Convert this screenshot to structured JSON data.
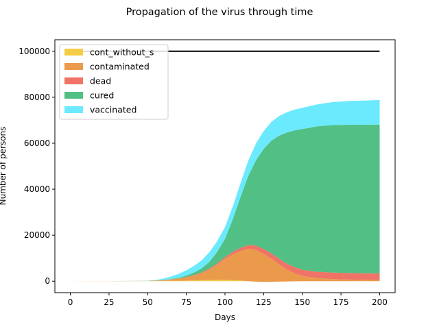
{
  "chart_data": {
    "type": "area",
    "title": "Propagation of the virus through time",
    "xlabel": "Days",
    "ylabel": "Number of persons",
    "xlim": [
      -10,
      210
    ],
    "ylim": [
      -5000,
      105000
    ],
    "xticks": [
      0,
      25,
      50,
      75,
      100,
      125,
      150,
      175,
      200
    ],
    "yticks": [
      0,
      20000,
      40000,
      60000,
      80000,
      100000
    ],
    "legend_position": "upper-left",
    "total_population": 100000,
    "total_line_color": "#000000",
    "x": [
      0,
      25,
      50,
      55,
      60,
      65,
      70,
      75,
      80,
      85,
      90,
      95,
      100,
      105,
      110,
      115,
      120,
      125,
      130,
      135,
      140,
      145,
      150,
      160,
      170,
      180,
      190,
      200
    ],
    "series": [
      {
        "name": "cont_without_s",
        "color": "#f2cd45",
        "values": [
          0,
          10,
          60,
          80,
          110,
          150,
          200,
          260,
          330,
          420,
          500,
          560,
          600,
          500,
          300,
          0,
          -200,
          -300,
          -250,
          -150,
          -100,
          -60,
          -30,
          0,
          0,
          0,
          0,
          0
        ]
      },
      {
        "name": "contaminated",
        "color": "#eb9a4c",
        "values": [
          0,
          20,
          80,
          150,
          300,
          550,
          900,
          1400,
          2100,
          3100,
          4600,
          6600,
          9000,
          11200,
          12800,
          14000,
          13800,
          12200,
          10000,
          7500,
          5200,
          3500,
          2300,
          1300,
          900,
          700,
          600,
          500
        ]
      },
      {
        "name": "dead",
        "color": "#ef7366",
        "values": [
          0,
          0,
          10,
          20,
          40,
          70,
          100,
          150,
          220,
          300,
          400,
          600,
          800,
          1100,
          1400,
          1700,
          1900,
          2100,
          2300,
          2450,
          2550,
          2650,
          2700,
          2750,
          2800,
          2850,
          2850,
          2900
        ]
      },
      {
        "name": "cured",
        "color": "#52bf84",
        "values": [
          0,
          0,
          10,
          30,
          70,
          150,
          300,
          600,
          1100,
          1800,
          3000,
          5000,
          8000,
          14000,
          22000,
          30000,
          37000,
          43500,
          49000,
          53500,
          57000,
          59500,
          61200,
          63300,
          64200,
          64500,
          64600,
          64700
        ]
      },
      {
        "name": "vaccinated",
        "color": "#6aeafc",
        "values": [
          0,
          0,
          50,
          200,
          600,
          1100,
          1700,
          2300,
          2900,
          3500,
          4200,
          4700,
          5100,
          5600,
          6000,
          6600,
          7300,
          7800,
          8200,
          8500,
          8800,
          9000,
          9200,
          9600,
          10000,
          10300,
          10500,
          10700
        ]
      }
    ]
  }
}
